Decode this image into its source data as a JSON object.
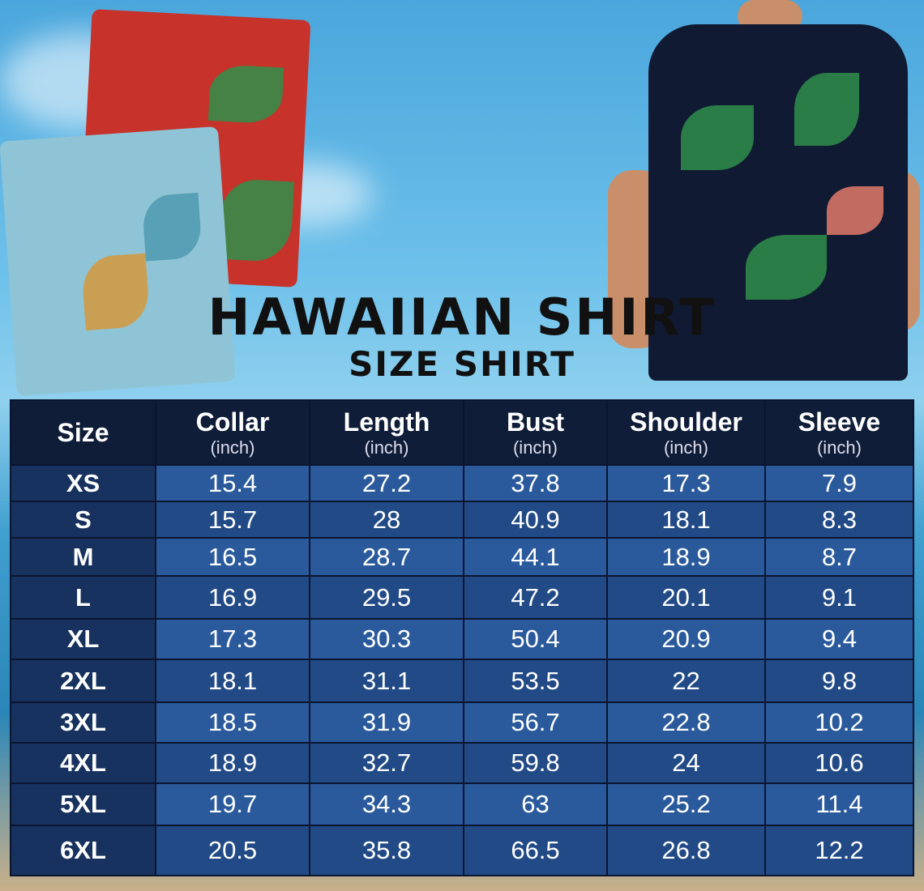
{
  "title": "HAWAIIAN SHIRT",
  "subtitle": "SIZE SHIRT",
  "colors": {
    "header_bg": "#0f1d38",
    "row_light": "#2a5a9c",
    "row_dark": "#214a86",
    "size_col": "#17325e"
  },
  "table": {
    "size_header": "Size",
    "columns": [
      {
        "label": "Collar",
        "unit": "(inch)"
      },
      {
        "label": "Length",
        "unit": "(inch)"
      },
      {
        "label": "Bust",
        "unit": "(inch)"
      },
      {
        "label": "Shoulder",
        "unit": "(inch)"
      },
      {
        "label": "Sleeve",
        "unit": "(inch)"
      }
    ],
    "rows": [
      {
        "size": "XS",
        "values": [
          "15.4",
          "27.2",
          "37.8",
          "17.3",
          "7.9"
        ]
      },
      {
        "size": "S",
        "values": [
          "15.7",
          "28",
          "40.9",
          "18.1",
          "8.3"
        ]
      },
      {
        "size": "M",
        "values": [
          "16.5",
          "28.7",
          "44.1",
          "18.9",
          "8.7"
        ]
      },
      {
        "size": "L",
        "values": [
          "16.9",
          "29.5",
          "47.2",
          "20.1",
          "9.1"
        ]
      },
      {
        "size": "XL",
        "values": [
          "17.3",
          "30.3",
          "50.4",
          "20.9",
          "9.4"
        ]
      },
      {
        "size": "2XL",
        "values": [
          "18.1",
          "31.1",
          "53.5",
          "22",
          "9.8"
        ]
      },
      {
        "size": "3XL",
        "values": [
          "18.5",
          "31.9",
          "56.7",
          "22.8",
          "10.2"
        ]
      },
      {
        "size": "4XL",
        "values": [
          "18.9",
          "32.7",
          "59.8",
          "24",
          "10.6"
        ]
      },
      {
        "size": "5XL",
        "values": [
          "19.7",
          "34.3",
          "63",
          "25.2",
          "11.4"
        ]
      },
      {
        "size": "6XL",
        "values": [
          "20.5",
          "35.8",
          "66.5",
          "26.8",
          "12.2"
        ]
      }
    ]
  }
}
